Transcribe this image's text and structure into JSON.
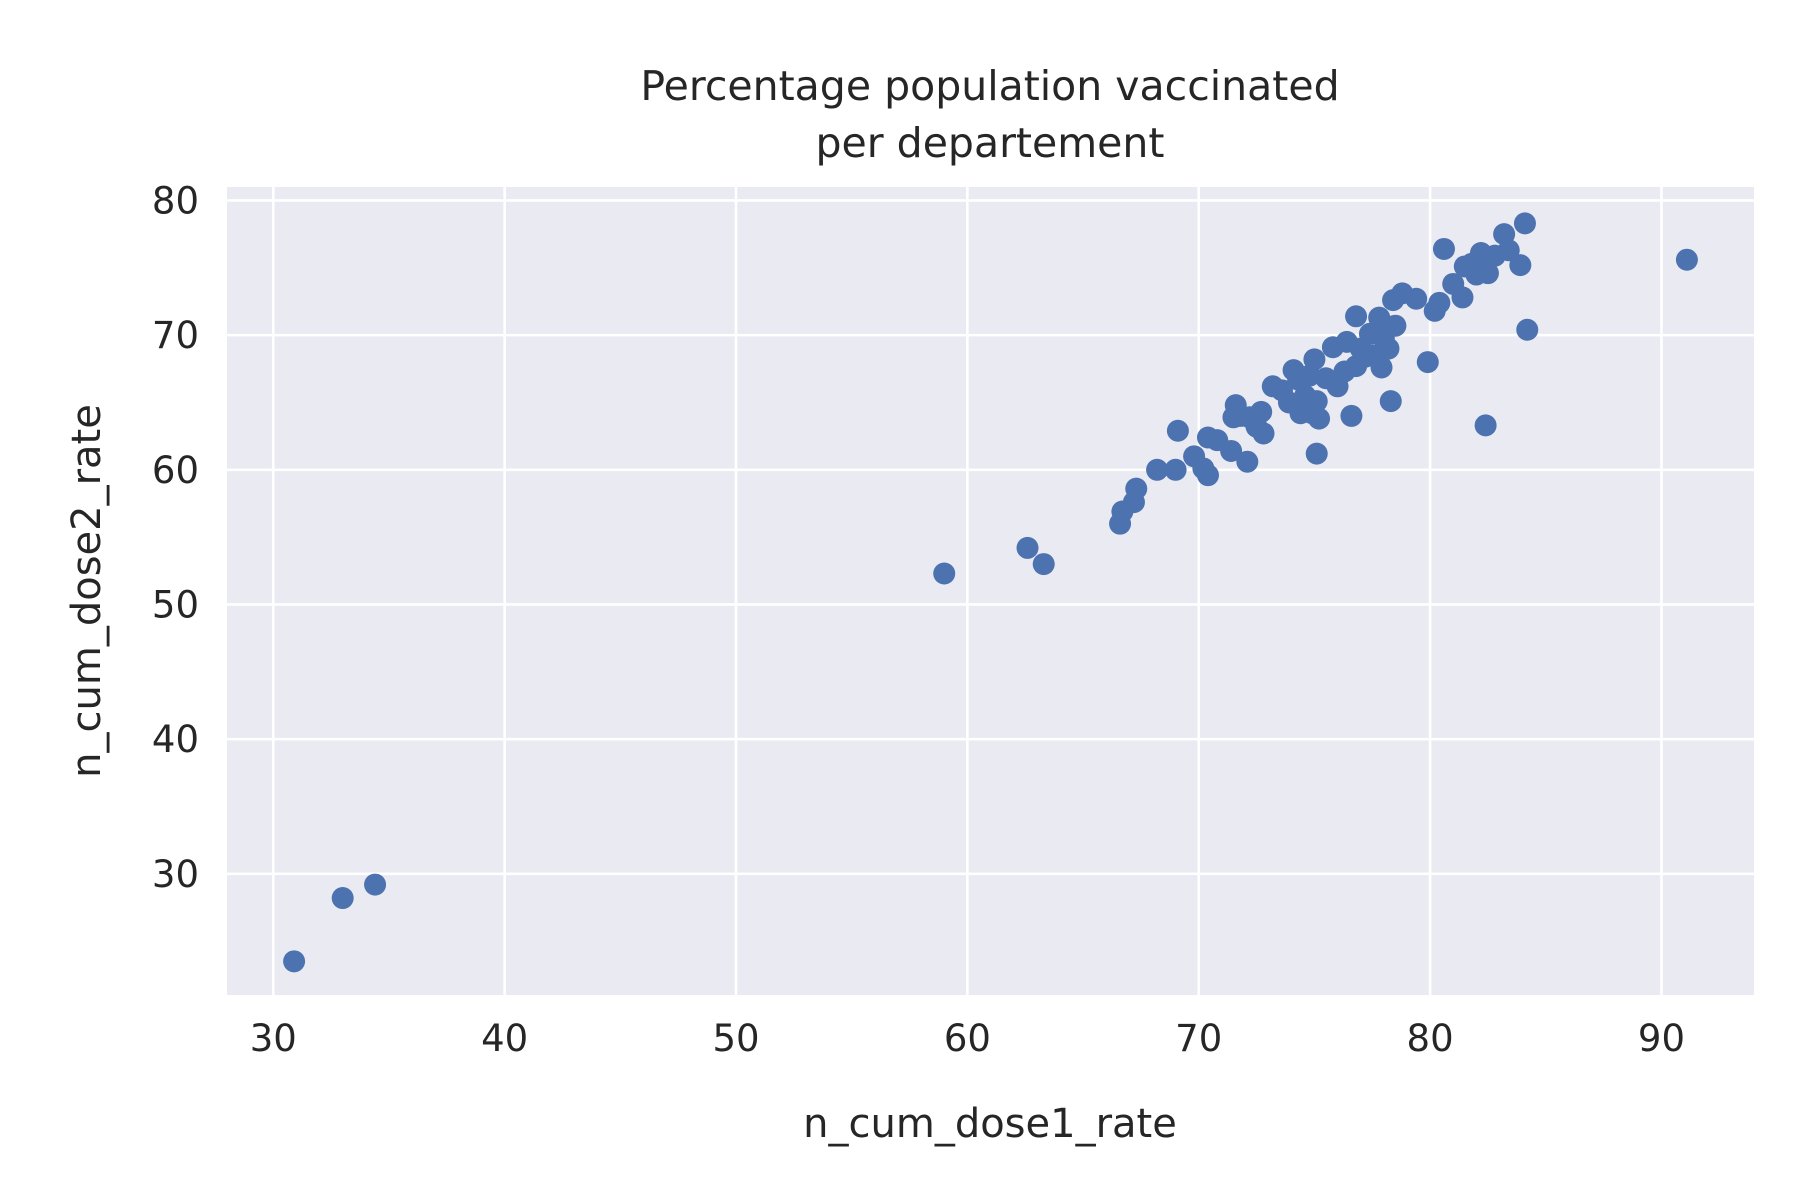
{
  "chart_data": {
    "type": "scatter",
    "title": [
      "Percentage population vaccinated",
      "per departement"
    ],
    "xlabel": "n_cum_dose1_rate",
    "ylabel": "n_cum_dose2_rate",
    "xlim": [
      28,
      94
    ],
    "ylim": [
      21,
      81
    ],
    "xticks": [
      30,
      40,
      50,
      60,
      70,
      80,
      90
    ],
    "yticks": [
      30,
      40,
      50,
      60,
      70,
      80
    ],
    "grid": true,
    "colors": {
      "background": "#eaeaf2",
      "grid": "#ffffff",
      "point": "#4c72b0"
    },
    "series": [
      {
        "points": [
          [
            30.9,
            23.5
          ],
          [
            33.0,
            28.2
          ],
          [
            34.4,
            29.2
          ],
          [
            59.0,
            52.3
          ],
          [
            62.6,
            54.2
          ],
          [
            63.3,
            53.0
          ],
          [
            66.6,
            56.0
          ],
          [
            66.7,
            56.9
          ],
          [
            67.2,
            57.6
          ],
          [
            67.3,
            58.6
          ],
          [
            68.2,
            60.0
          ],
          [
            69.0,
            60.0
          ],
          [
            69.1,
            62.9
          ],
          [
            69.8,
            61.0
          ],
          [
            70.2,
            60.1
          ],
          [
            70.4,
            59.6
          ],
          [
            70.4,
            62.4
          ],
          [
            70.8,
            62.2
          ],
          [
            71.4,
            61.4
          ],
          [
            71.5,
            63.9
          ],
          [
            71.6,
            64.8
          ],
          [
            71.8,
            64.0
          ],
          [
            72.1,
            60.6
          ],
          [
            72.2,
            63.9
          ],
          [
            72.5,
            63.2
          ],
          [
            72.7,
            64.3
          ],
          [
            72.8,
            62.7
          ],
          [
            73.2,
            66.2
          ],
          [
            73.6,
            65.9
          ],
          [
            73.9,
            65.0
          ],
          [
            74.1,
            67.4
          ],
          [
            74.3,
            66.7
          ],
          [
            74.4,
            64.2
          ],
          [
            74.6,
            65.5
          ],
          [
            74.8,
            67.0
          ],
          [
            74.9,
            64.2
          ],
          [
            75.0,
            68.2
          ],
          [
            75.1,
            61.2
          ],
          [
            75.1,
            65.1
          ],
          [
            75.2,
            63.8
          ],
          [
            75.5,
            66.8
          ],
          [
            75.8,
            69.1
          ],
          [
            76.0,
            66.2
          ],
          [
            76.3,
            67.3
          ],
          [
            76.4,
            69.5
          ],
          [
            76.6,
            64.0
          ],
          [
            76.8,
            71.4
          ],
          [
            76.8,
            67.7
          ],
          [
            77.0,
            69.0
          ],
          [
            77.2,
            68.4
          ],
          [
            77.4,
            70.1
          ],
          [
            77.6,
            68.5
          ],
          [
            77.8,
            71.3
          ],
          [
            77.9,
            67.6
          ],
          [
            78.0,
            69.8
          ],
          [
            78.2,
            69.0
          ],
          [
            78.3,
            65.1
          ],
          [
            78.4,
            72.6
          ],
          [
            78.5,
            70.7
          ],
          [
            78.8,
            73.1
          ],
          [
            79.4,
            72.7
          ],
          [
            79.9,
            68.0
          ],
          [
            80.2,
            71.8
          ],
          [
            80.4,
            72.4
          ],
          [
            80.6,
            76.4
          ],
          [
            81.0,
            73.8
          ],
          [
            81.4,
            72.8
          ],
          [
            81.5,
            75.1
          ],
          [
            81.8,
            75.3
          ],
          [
            82.0,
            74.5
          ],
          [
            82.2,
            76.1
          ],
          [
            82.4,
            63.3
          ],
          [
            82.5,
            74.6
          ],
          [
            82.8,
            75.9
          ],
          [
            83.2,
            77.5
          ],
          [
            83.4,
            76.3
          ],
          [
            83.9,
            75.2
          ],
          [
            84.1,
            78.3
          ],
          [
            84.2,
            70.4
          ],
          [
            91.1,
            75.6
          ]
        ]
      }
    ]
  }
}
